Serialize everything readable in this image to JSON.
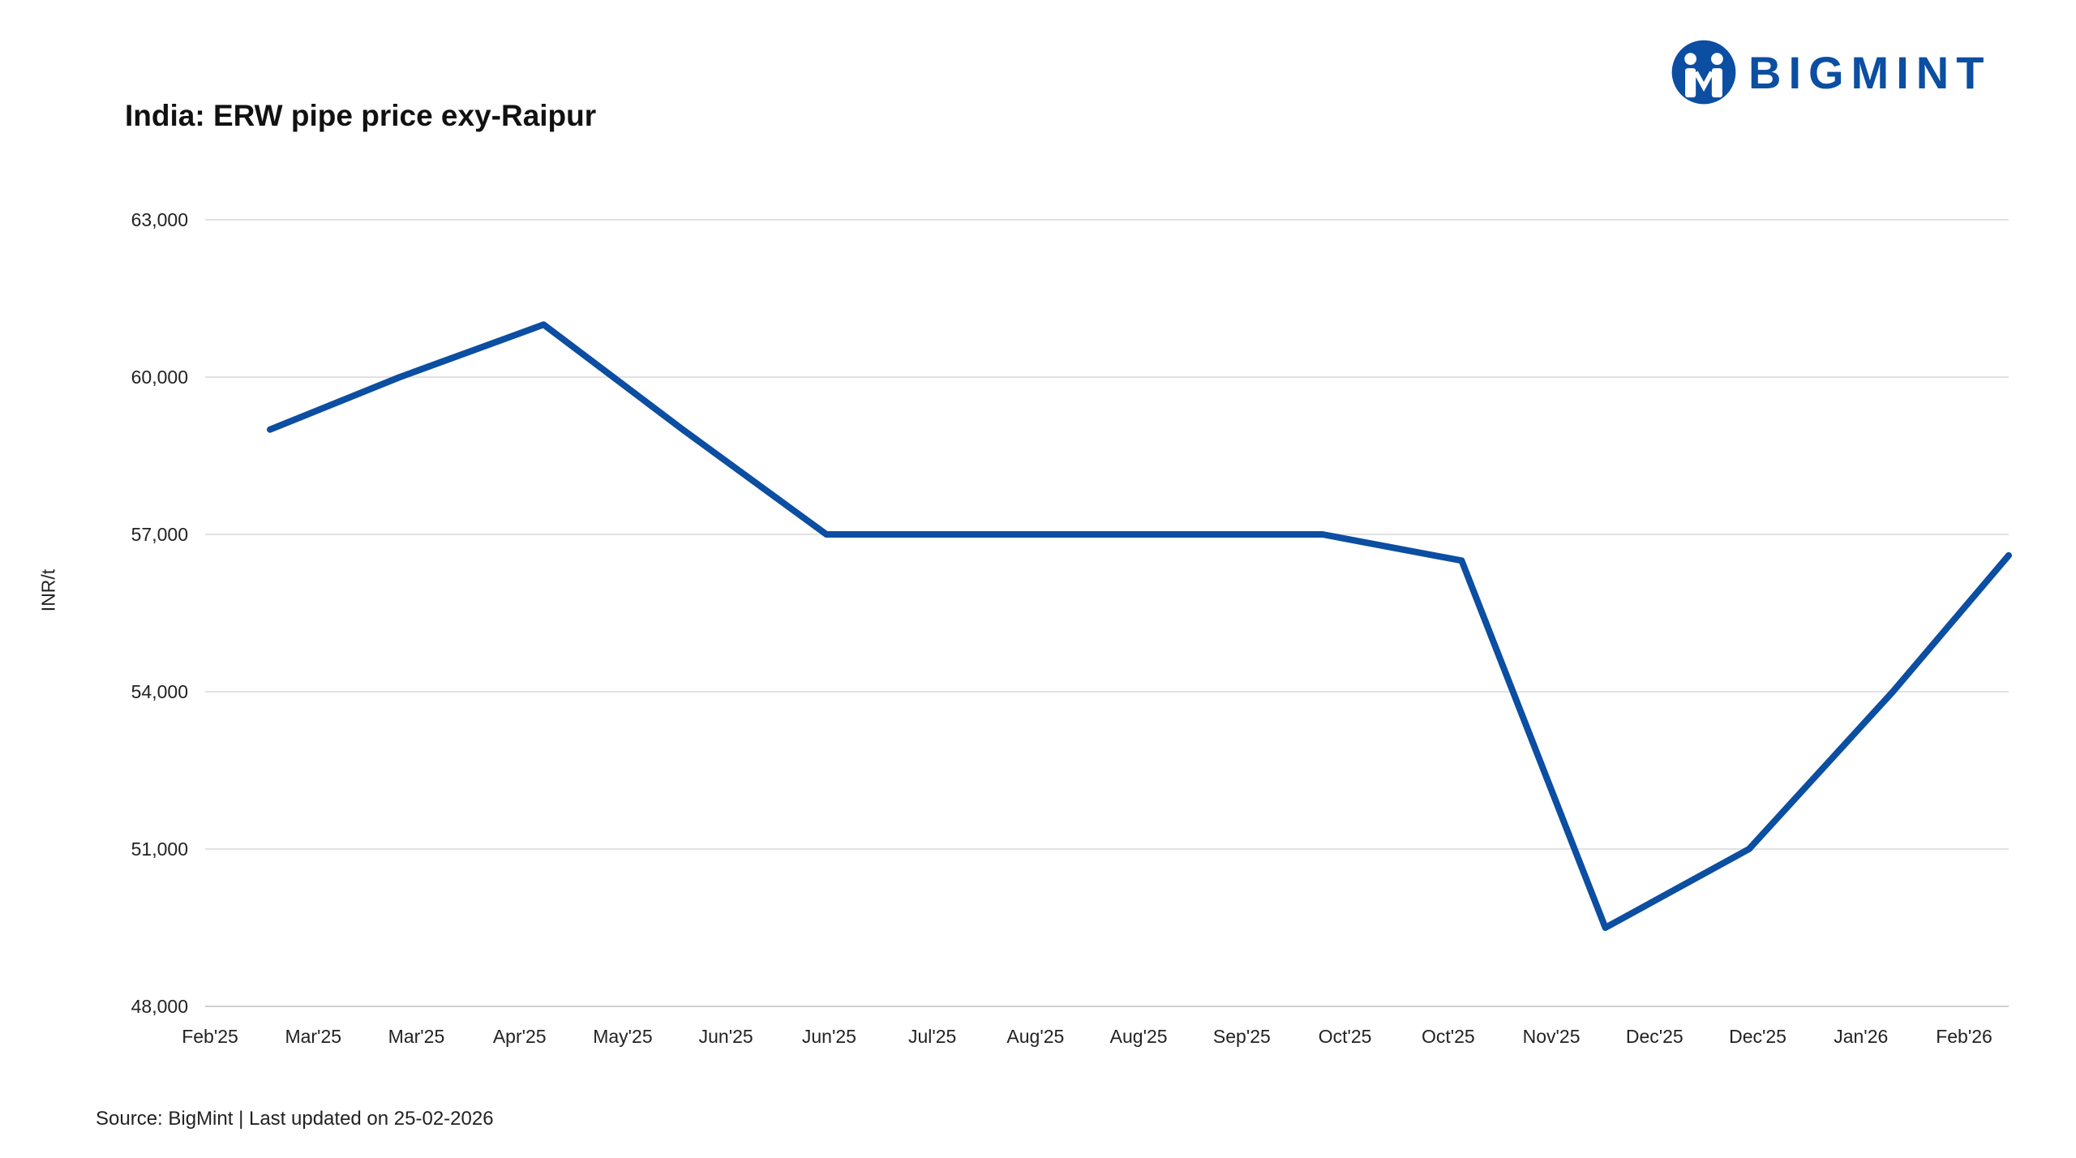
{
  "title": "India: ERW pipe price exy-Raipur",
  "logo": {
    "text": "BIGMINT",
    "color": "#0b4ea2"
  },
  "footer": {
    "text": "Source: BigMint | Last updated on 25-02-2026"
  },
  "chart_data": {
    "type": "line",
    "title": "India: ERW pipe price exy-Raipur",
    "xlabel": "",
    "ylabel": "INR/t",
    "ylim": [
      48000,
      63000
    ],
    "yticks": [
      48000,
      51000,
      54000,
      57000,
      60000,
      63000
    ],
    "ytick_labels": [
      "48,000",
      "51,000",
      "54,000",
      "57,000",
      "60,000",
      "63,000"
    ],
    "x_tick_labels": [
      "Feb'25",
      "Mar'25",
      "Mar'25",
      "Apr'25",
      "May'25",
      "Jun'25",
      "Jun'25",
      "Jul'25",
      "Aug'25",
      "Aug'25",
      "Sep'25",
      "Oct'25",
      "Oct'25",
      "Nov'25",
      "Dec'25",
      "Dec'25",
      "Jan'26",
      "Feb'26"
    ],
    "x_range": [
      "2025-02-01",
      "2026-02-25"
    ],
    "grid": "horizontal",
    "line_color": "#0b4ea2",
    "series": [
      {
        "points": [
          {
            "date": "2025-02-15",
            "value": 59000
          },
          {
            "date": "2025-03-15",
            "value": 60000
          },
          {
            "date": "2025-04-15",
            "value": 61000
          },
          {
            "date": "2025-05-15",
            "value": 59000
          },
          {
            "date": "2025-06-15",
            "value": 57000
          },
          {
            "date": "2025-08-01",
            "value": 57000
          },
          {
            "date": "2025-09-30",
            "value": 57000
          },
          {
            "date": "2025-10-30",
            "value": 56500
          },
          {
            "date": "2025-11-30",
            "value": 49500
          },
          {
            "date": "2025-12-31",
            "value": 51000
          },
          {
            "date": "2026-01-31",
            "value": 54000
          },
          {
            "date": "2026-02-25",
            "value": 56600
          }
        ]
      }
    ]
  }
}
